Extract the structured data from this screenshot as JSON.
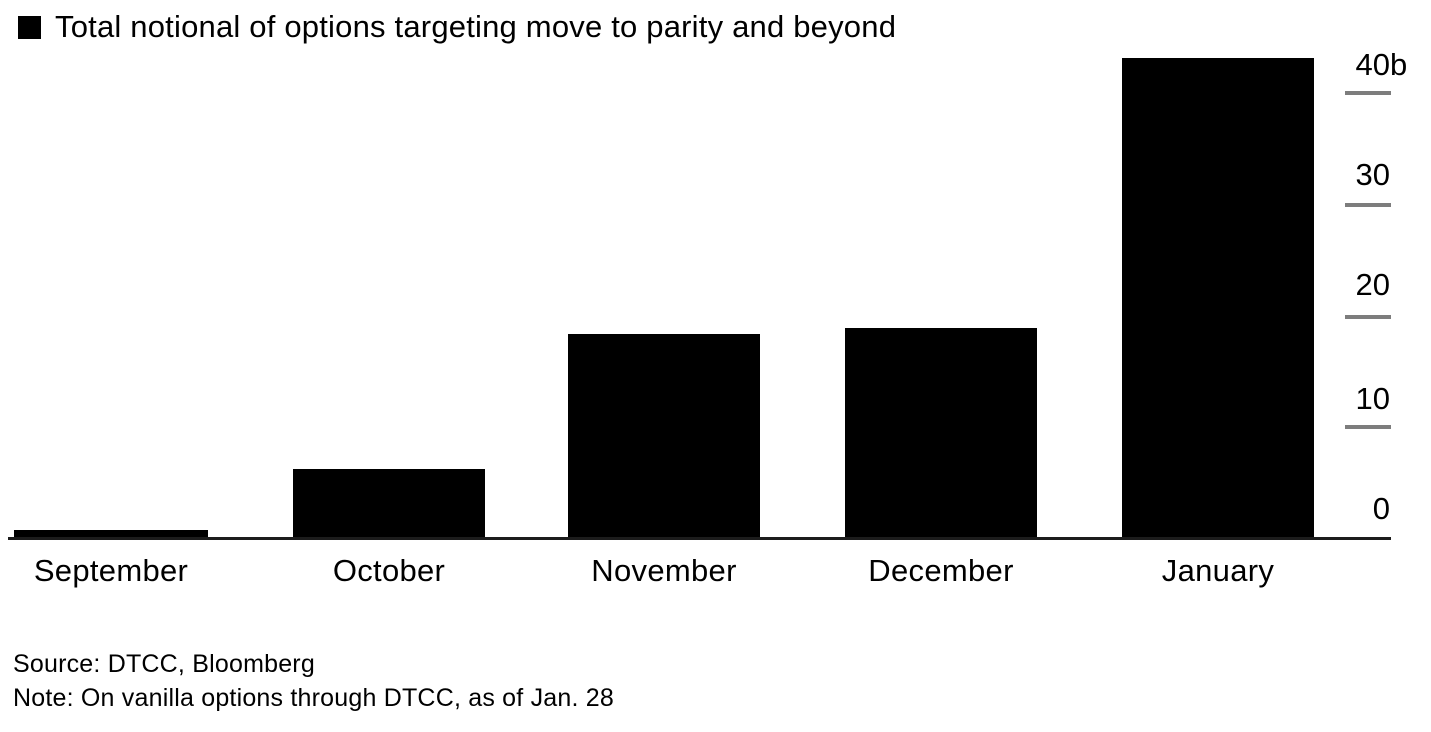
{
  "legend": {
    "label": "Total notional of options targeting move to parity and beyond",
    "marker_color": "#000000"
  },
  "chart_data": {
    "type": "bar",
    "title": "Total notional of options targeting move to parity and beyond",
    "categories": [
      "September",
      "October",
      "November",
      "December",
      "January"
    ],
    "values": [
      0.6,
      6.1,
      18.3,
      18.9,
      43.3
    ],
    "unit": "billions",
    "xlabel": "",
    "ylabel": "",
    "ylim": [
      0,
      43.5
    ],
    "grid": false,
    "legend_position": "top-left",
    "y_axis_side": "right",
    "bar_color": "#000000",
    "y_ticks": [
      {
        "value": 40,
        "label": "40",
        "suffix": "b"
      },
      {
        "value": 30,
        "label": "30",
        "suffix": ""
      },
      {
        "value": 20,
        "label": "20",
        "suffix": ""
      },
      {
        "value": 10,
        "label": "10",
        "suffix": ""
      },
      {
        "value": 0,
        "label": "0",
        "suffix": ""
      }
    ]
  },
  "footer": {
    "source": "Source: DTCC, Bloomberg",
    "note": "Note: On vanilla options through DTCC, as of Jan. 28"
  },
  "colors": {
    "bar": "#000000",
    "text": "#000000",
    "tick_dash": "#7d7d7d",
    "axis_line": "#1c1c1c",
    "background": "#ffffff"
  }
}
